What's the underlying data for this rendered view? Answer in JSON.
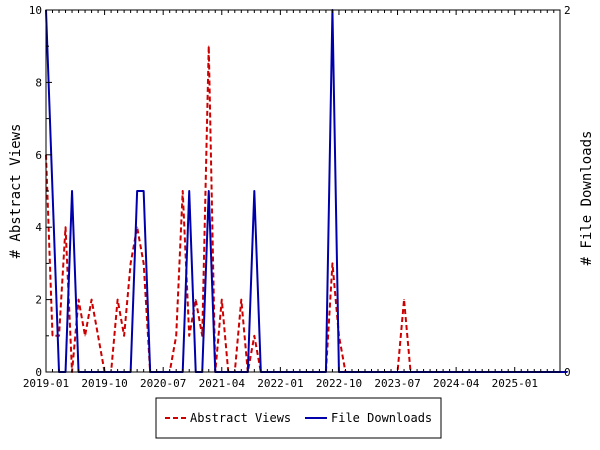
{
  "chart_data": {
    "type": "line",
    "title": "",
    "xlabel": "",
    "ylabel": "# Abstract Views",
    "y2label": "# File Downloads",
    "x_tick_labels": [
      "2019-01",
      "2019-10",
      "2020-07",
      "2021-04",
      "2022-01",
      "2022-10",
      "2023-07",
      "2024-04",
      "2025-01"
    ],
    "x_range": [
      "2019-01",
      "2025-09"
    ],
    "ylim": [
      0,
      10
    ],
    "y_ticks": [
      "0",
      "2",
      "4",
      "6",
      "8",
      "10"
    ],
    "y2lim": [
      0,
      2
    ],
    "y2_ticks": [
      "0",
      "2"
    ],
    "grid": false,
    "legend_position": "bottom",
    "x": [
      "2019-01",
      "2019-02",
      "2019-03",
      "2019-04",
      "2019-05",
      "2019-06",
      "2019-07",
      "2019-08",
      "2019-09",
      "2019-10",
      "2019-11",
      "2019-12",
      "2020-01",
      "2020-02",
      "2020-03",
      "2020-04",
      "2020-05",
      "2020-06",
      "2020-07",
      "2020-08",
      "2020-09",
      "2020-10",
      "2020-11",
      "2020-12",
      "2021-01",
      "2021-02",
      "2021-03",
      "2021-04",
      "2021-05",
      "2021-06",
      "2021-07",
      "2021-08",
      "2021-09",
      "2021-10",
      "2021-11",
      "2021-12",
      "2022-01",
      "2022-02",
      "2022-03",
      "2022-04",
      "2022-05",
      "2022-06",
      "2022-07",
      "2022-08",
      "2022-09",
      "2022-10",
      "2022-11",
      "2022-12",
      "2023-01",
      "2023-02",
      "2023-03",
      "2023-04",
      "2023-05",
      "2023-06",
      "2023-07",
      "2023-08",
      "2023-09",
      "2023-10",
      "2023-11",
      "2023-12",
      "2024-01",
      "2024-02",
      "2024-03",
      "2024-04",
      "2024-05",
      "2024-06",
      "2024-07",
      "2024-08",
      "2024-09",
      "2024-10",
      "2024-11",
      "2024-12",
      "2025-01",
      "2025-02",
      "2025-03",
      "2025-04",
      "2025-05",
      "2025-06",
      "2025-07",
      "2025-08",
      "2025-09"
    ],
    "series": [
      {
        "name": "Abstract Views",
        "axis": "left",
        "color": "#cc0000",
        "style": "dashed",
        "values": [
          6,
          1,
          1,
          4,
          0,
          2,
          1,
          2,
          1,
          0,
          0,
          2,
          1,
          3,
          4,
          3,
          0,
          0,
          0,
          0,
          1,
          5,
          1,
          2,
          1,
          9,
          0,
          2,
          0,
          0,
          2,
          0,
          1,
          0,
          0,
          0,
          0,
          0,
          0,
          0,
          0,
          0,
          0,
          0,
          3,
          1,
          0,
          0,
          0,
          0,
          0,
          0,
          0,
          0,
          0,
          2,
          0,
          0,
          0,
          0,
          0,
          0,
          0,
          0,
          0,
          0,
          0,
          0,
          0,
          0,
          0,
          0,
          0,
          0,
          0,
          0,
          0,
          0,
          0,
          0,
          0
        ]
      },
      {
        "name": "File Downloads",
        "axis": "right",
        "color": "#0000aa",
        "style": "solid",
        "values": [
          2,
          1,
          0,
          0,
          1,
          0,
          0,
          0,
          0,
          0,
          0,
          0,
          0,
          0,
          1,
          1,
          0,
          0,
          0,
          0,
          0,
          0,
          1,
          0,
          0,
          1,
          0,
          0,
          0,
          0,
          0,
          0,
          1,
          0,
          0,
          0,
          0,
          0,
          0,
          0,
          0,
          0,
          0,
          0,
          2,
          0,
          0,
          0,
          0,
          0,
          0,
          0,
          0,
          0,
          0,
          0,
          0,
          0,
          0,
          0,
          0,
          0,
          0,
          0,
          0,
          0,
          0,
          0,
          0,
          0,
          0,
          0,
          0,
          0,
          0,
          0,
          0,
          0,
          0,
          0,
          0
        ]
      }
    ]
  },
  "colors": {
    "axis": "#000000",
    "abstract_views": "#cc0000",
    "file_downloads": "#0000aa"
  }
}
